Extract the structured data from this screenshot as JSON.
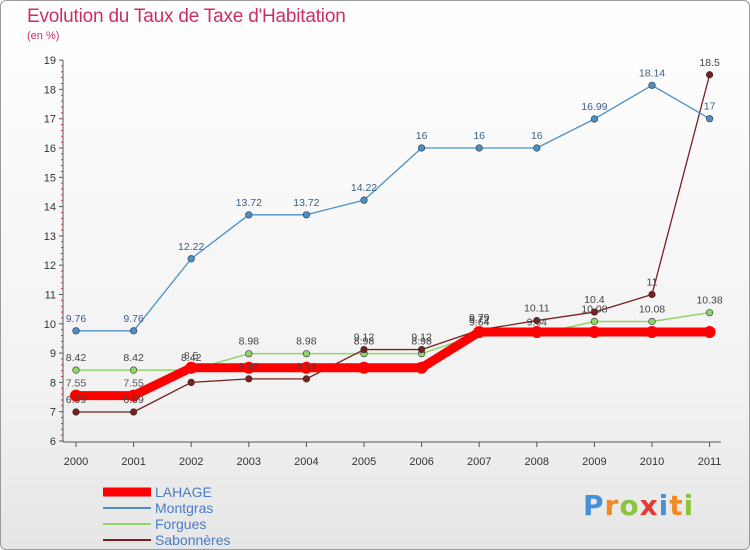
{
  "title": "Evolution du Taux de Taxe d'Habitation",
  "unit": "(en %)",
  "logo": {
    "text": "Proxiti",
    "letters": [
      {
        "ch": "P",
        "color": "#4a90d9"
      },
      {
        "ch": "r",
        "color": "#f08a24"
      },
      {
        "ch": "o",
        "color": "#8cc43c"
      },
      {
        "ch": "x",
        "color": "#e53935"
      },
      {
        "ch": "i",
        "color": "#4a90d9"
      },
      {
        "ch": "t",
        "color": "#f08a24"
      },
      {
        "ch": "i",
        "color": "#8cc43c"
      }
    ]
  },
  "chart_data": {
    "type": "line",
    "title": "Evolution du Taux de Taxe d'Habitation",
    "ylabel": "(en %)",
    "xlabel": "",
    "ylim": [
      6,
      19
    ],
    "yticks": [
      "6",
      "7",
      "8",
      "9",
      "10",
      "11",
      "12",
      "13",
      "14",
      "15",
      "16",
      "17",
      "18",
      "19"
    ],
    "grid": false,
    "legend_position": "bottom-left",
    "x": [
      "2000",
      "2001",
      "2002",
      "2003",
      "2004",
      "2005",
      "2006",
      "2007",
      "2008",
      "2009",
      "2010",
      "2011"
    ],
    "series": [
      {
        "name": "LAHAGE",
        "color": "#ff0000",
        "values": [
          7.55,
          7.55,
          8.5,
          8.5,
          8.5,
          8.5,
          8.5,
          9.72,
          9.72,
          9.72,
          9.72,
          9.72
        ],
        "labels": [
          "7.55",
          "7.55",
          "8.5",
          "",
          "",
          "",
          "",
          "9.72",
          "",
          "",
          "",
          ""
        ]
      },
      {
        "name": "Montgras",
        "color": "#4a90c8",
        "values": [
          9.76,
          9.76,
          12.22,
          13.72,
          13.72,
          14.22,
          16,
          16,
          16,
          16.99,
          18.14,
          17
        ],
        "labels": [
          "9.76",
          "9.76",
          "12.22",
          "13.72",
          "13.72",
          "14.22",
          "16",
          "16",
          "16",
          "16.99",
          "18.14",
          "17"
        ]
      },
      {
        "name": "Forgues",
        "color": "#8fd66a",
        "values": [
          8.42,
          8.42,
          8.42,
          8.98,
          8.98,
          8.98,
          8.98,
          9.64,
          9.64,
          10.08,
          10.08,
          10.38
        ],
        "labels": [
          "8.42",
          "8.42",
          "8.42",
          "8.98",
          "8.98",
          "8.98",
          "8.98",
          "9.64",
          "9.64",
          "10.08",
          "10.08",
          "10.38"
        ]
      },
      {
        "name": "Sabonnères",
        "color": "#7a1f1f",
        "values": [
          6.99,
          6.99,
          8.0,
          8.12,
          8.12,
          9.12,
          9.12,
          9.79,
          10.11,
          10.4,
          11,
          18.5
        ],
        "labels": [
          "6.99",
          "6.99",
          "",
          "8.12",
          "8.12",
          "9.12",
          "9.12",
          "9.79",
          "10.11",
          "10.4",
          "11",
          "18.5"
        ]
      }
    ]
  }
}
